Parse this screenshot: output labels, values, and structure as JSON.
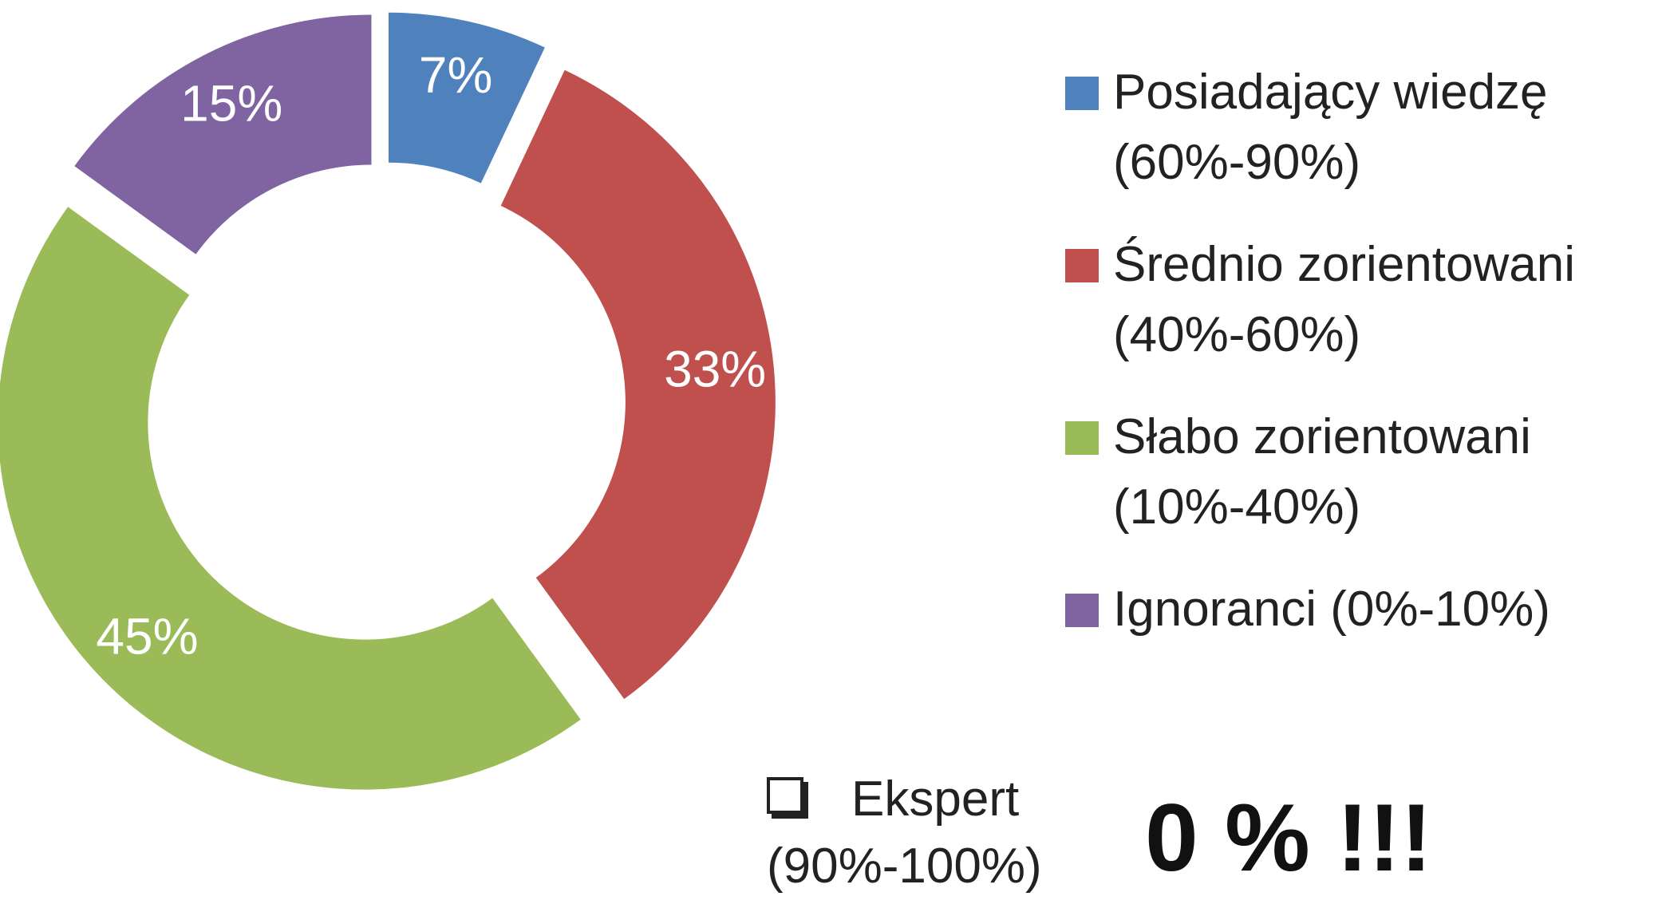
{
  "chart_data": {
    "type": "donut",
    "series": [
      {
        "name": "Posiadający wiedzę (60%-90%)",
        "color": "#4f81bd",
        "value": 7,
        "value_label": "7%"
      },
      {
        "name": "Średnio zorientowani (40%-60%)",
        "color": "#c0504d",
        "value": 33,
        "value_label": "33%"
      },
      {
        "name": "Słabo zorientowani (10%-40%)",
        "color": "#9bbb59",
        "value": 45,
        "value_label": "45%"
      },
      {
        "name": "Ignoranci (0%-10%)",
        "color": "#8064a2",
        "value": 15,
        "value_label": "15%"
      }
    ],
    "legend": "right"
  },
  "note": {
    "label": "Ekspert (90%-100%)",
    "value": "0 % !!!"
  }
}
